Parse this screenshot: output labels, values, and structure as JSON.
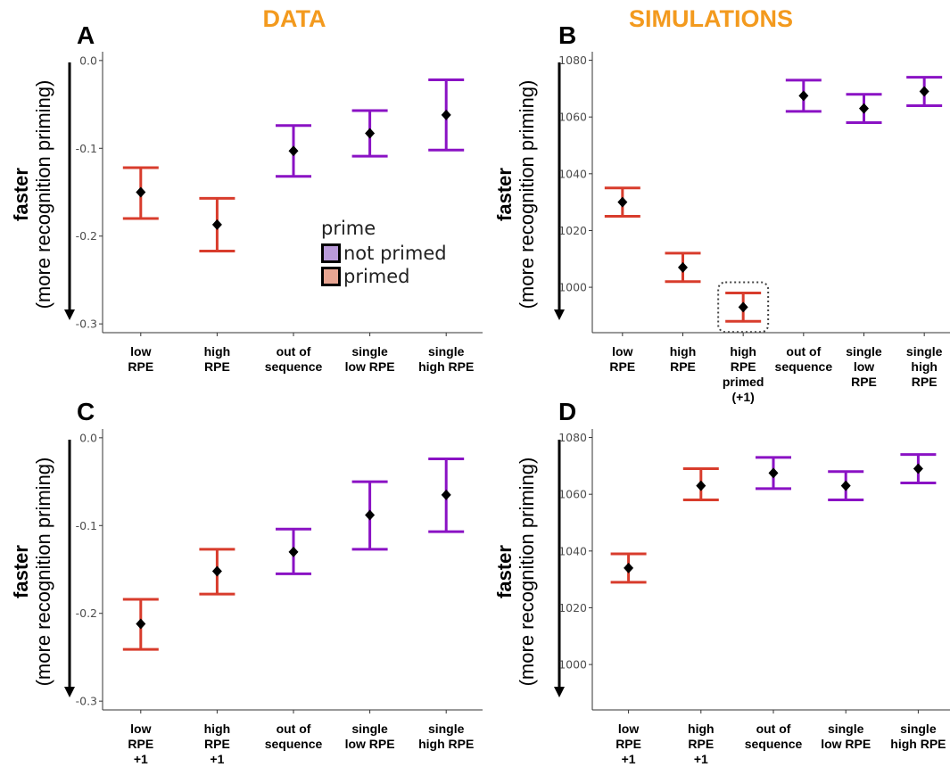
{
  "column_titles": {
    "data": "DATA",
    "simulations": "SIMULATIONS"
  },
  "ylabel": {
    "line1": "faster",
    "line2": "(more recognition priming)"
  },
  "colors": {
    "not_primed": "#8a12c4",
    "primed": "#d83c2c",
    "point": "#000000",
    "title": "#f39a1e",
    "legend_not_primed": "#b99ad9",
    "legend_primed": "#e8a592"
  },
  "legend": {
    "title": "prime",
    "items": [
      {
        "label": "not primed",
        "key": "not_primed"
      },
      {
        "label": "primed",
        "key": "primed"
      }
    ]
  },
  "chart_data": [
    {
      "panel": "A",
      "type": "errorbar",
      "ylim": [
        -0.31,
        0.01
      ],
      "yticks": [
        "0.0",
        "-0.1",
        "-0.2",
        "-0.3"
      ],
      "ytick_values": [
        0.0,
        -0.1,
        -0.2,
        -0.3
      ],
      "categories": [
        {
          "label": [
            "low",
            "RPE"
          ],
          "mean": -0.15,
          "low": -0.18,
          "high": -0.122,
          "group": "primed"
        },
        {
          "label": [
            "high",
            "RPE"
          ],
          "mean": -0.187,
          "low": -0.217,
          "high": -0.157,
          "group": "primed"
        },
        {
          "label": [
            "out of",
            "sequence"
          ],
          "mean": -0.103,
          "low": -0.132,
          "high": -0.074,
          "group": "not_primed"
        },
        {
          "label": [
            "single",
            "low RPE"
          ],
          "mean": -0.083,
          "low": -0.109,
          "high": -0.057,
          "group": "not_primed"
        },
        {
          "label": [
            "single",
            "high RPE"
          ],
          "mean": -0.062,
          "low": -0.102,
          "high": -0.022,
          "group": "not_primed"
        }
      ]
    },
    {
      "panel": "B",
      "type": "errorbar",
      "ylim": [
        984,
        1083
      ],
      "yticks": [
        "1080",
        "1060",
        "1040",
        "1020",
        "1000"
      ],
      "ytick_values": [
        1080,
        1060,
        1040,
        1020,
        1000
      ],
      "categories": [
        {
          "label": [
            "low",
            "RPE"
          ],
          "mean": 1030,
          "low": 1025,
          "high": 1035,
          "group": "primed"
        },
        {
          "label": [
            "high",
            "RPE"
          ],
          "mean": 1007,
          "low": 1002,
          "high": 1012,
          "group": "primed"
        },
        {
          "label": [
            "high",
            "RPE",
            "primed",
            "(+1)"
          ],
          "mean": 993,
          "low": 988,
          "high": 998,
          "group": "primed",
          "highlight": true
        },
        {
          "label": [
            "out of",
            "sequence"
          ],
          "mean": 1067.5,
          "low": 1062,
          "high": 1073,
          "group": "not_primed"
        },
        {
          "label": [
            "single",
            "low",
            "RPE"
          ],
          "mean": 1063,
          "low": 1058,
          "high": 1068,
          "group": "not_primed"
        },
        {
          "label": [
            "single",
            "high",
            "RPE"
          ],
          "mean": 1069,
          "low": 1064,
          "high": 1074,
          "group": "not_primed"
        }
      ]
    },
    {
      "panel": "C",
      "type": "errorbar",
      "ylim": [
        -0.31,
        0.01
      ],
      "yticks": [
        "0.0",
        "-0.1",
        "-0.2",
        "-0.3"
      ],
      "ytick_values": [
        0.0,
        -0.1,
        -0.2,
        -0.3
      ],
      "categories": [
        {
          "label": [
            "low",
            "RPE",
            "+1"
          ],
          "mean": -0.212,
          "low": -0.241,
          "high": -0.184,
          "group": "primed"
        },
        {
          "label": [
            "high",
            "RPE",
            "+1"
          ],
          "mean": -0.152,
          "low": -0.178,
          "high": -0.127,
          "group": "primed"
        },
        {
          "label": [
            "out of",
            "sequence"
          ],
          "mean": -0.13,
          "low": -0.155,
          "high": -0.104,
          "group": "not_primed"
        },
        {
          "label": [
            "single",
            "low RPE"
          ],
          "mean": -0.088,
          "low": -0.127,
          "high": -0.05,
          "group": "not_primed"
        },
        {
          "label": [
            "single",
            "high RPE"
          ],
          "mean": -0.065,
          "low": -0.107,
          "high": -0.024,
          "group": "not_primed"
        }
      ]
    },
    {
      "panel": "D",
      "type": "errorbar",
      "ylim": [
        984,
        1083
      ],
      "yticks": [
        "1080",
        "1060",
        "1040",
        "1020",
        "1000"
      ],
      "ytick_values": [
        1080,
        1060,
        1040,
        1020,
        1000
      ],
      "categories": [
        {
          "label": [
            "low",
            "RPE",
            "+1"
          ],
          "mean": 1034,
          "low": 1029,
          "high": 1039,
          "group": "primed"
        },
        {
          "label": [
            "high",
            "RPE",
            "+1"
          ],
          "mean": 1063,
          "low": 1058,
          "high": 1069,
          "group": "primed"
        },
        {
          "label": [
            "out of",
            "sequence"
          ],
          "mean": 1067.5,
          "low": 1062,
          "high": 1073,
          "group": "not_primed"
        },
        {
          "label": [
            "single",
            "low RPE"
          ],
          "mean": 1063,
          "low": 1058,
          "high": 1068,
          "group": "not_primed"
        },
        {
          "label": [
            "single",
            "high RPE"
          ],
          "mean": 1069,
          "low": 1064,
          "high": 1074,
          "group": "not_primed"
        }
      ]
    }
  ]
}
